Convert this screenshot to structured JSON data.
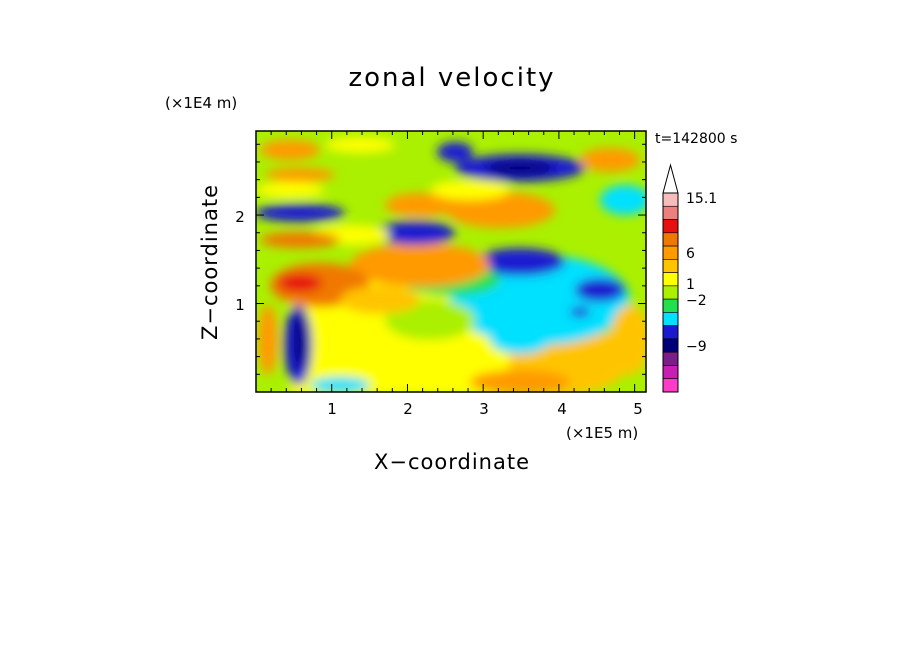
{
  "chart_data": {
    "type": "heatmap",
    "title": "zonal velocity",
    "xlabel": "X−coordinate",
    "ylabel": "Z−coordinate",
    "x_unit": "(×1E5 m)",
    "y_unit": "(×1E4 m)",
    "time_label": "t=142800 s",
    "xlim": [
      0,
      5.15
    ],
    "ylim": [
      0,
      2.95
    ],
    "x_ticks": [
      1,
      2,
      3,
      4,
      5
    ],
    "x_tick_labels": [
      "1",
      "2",
      "3",
      "4",
      "5"
    ],
    "y_ticks": [
      1,
      2
    ],
    "y_tick_labels": [
      "1",
      "2"
    ],
    "colorbar": {
      "labels": [
        "15.1",
        "6",
        "1",
        "−2",
        "−9"
      ],
      "colors_top_to_bottom": [
        "#ffffff",
        "#f8bcbc",
        "#ee7f7f",
        "#e61010",
        "#f07800",
        "#ff9a00",
        "#ffc400",
        "#ffff00",
        "#aaf000",
        "#20e050",
        "#00e0ff",
        "#1a1ad0",
        "#00007a",
        "#7a1e8a",
        "#c81eb4",
        "#ff3cc8"
      ]
    },
    "grid": false
  }
}
